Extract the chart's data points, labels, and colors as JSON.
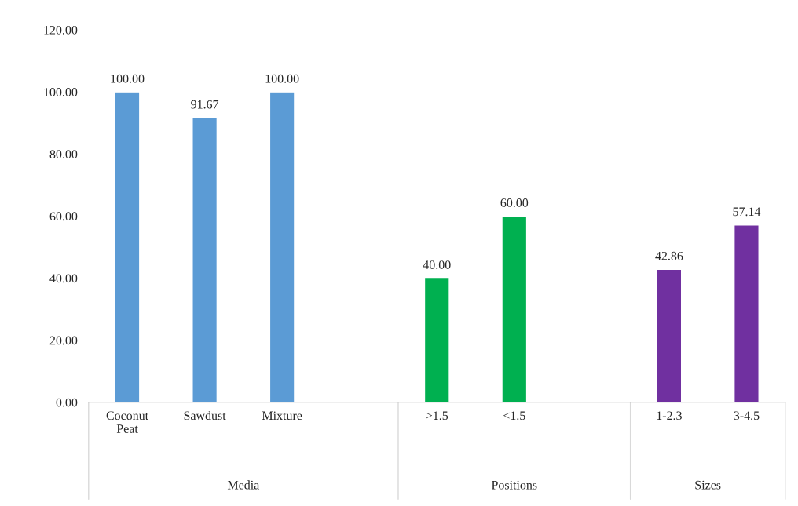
{
  "chart_data": {
    "type": "bar",
    "categories": [
      "Coconut\nPeat",
      "Sawdust",
      "Mixture",
      null,
      ">1.5",
      "<1.5",
      null,
      "1-2.3",
      "3-4.5"
    ],
    "values": [
      100.0,
      91.67,
      100.0,
      null,
      40.0,
      60.0,
      null,
      42.86,
      57.14
    ],
    "colors": [
      "#5b9bd5",
      "#5b9bd5",
      "#5b9bd5",
      "#5b9bd5",
      "#00b050",
      "#00b050",
      "#00b050",
      "#7030a0",
      "#7030a0"
    ],
    "ylim": [
      0,
      120
    ],
    "yticks": [
      {
        "value": 0,
        "label": "0.00"
      },
      {
        "value": 20,
        "label": "20.00"
      },
      {
        "value": 40,
        "label": "40.00"
      },
      {
        "value": 60,
        "label": "60.00"
      },
      {
        "value": 80,
        "label": "80.00"
      },
      {
        "value": 100,
        "label": "100.00"
      },
      {
        "value": 120,
        "label": "120.00"
      }
    ],
    "value_labels": [
      "100.00",
      "91.67",
      "100.00",
      null,
      "40.00",
      "60.00",
      null,
      "42.86",
      "57.14"
    ],
    "grid": false,
    "annotations": [
      "Media",
      "Positions",
      "Sizes"
    ]
  }
}
